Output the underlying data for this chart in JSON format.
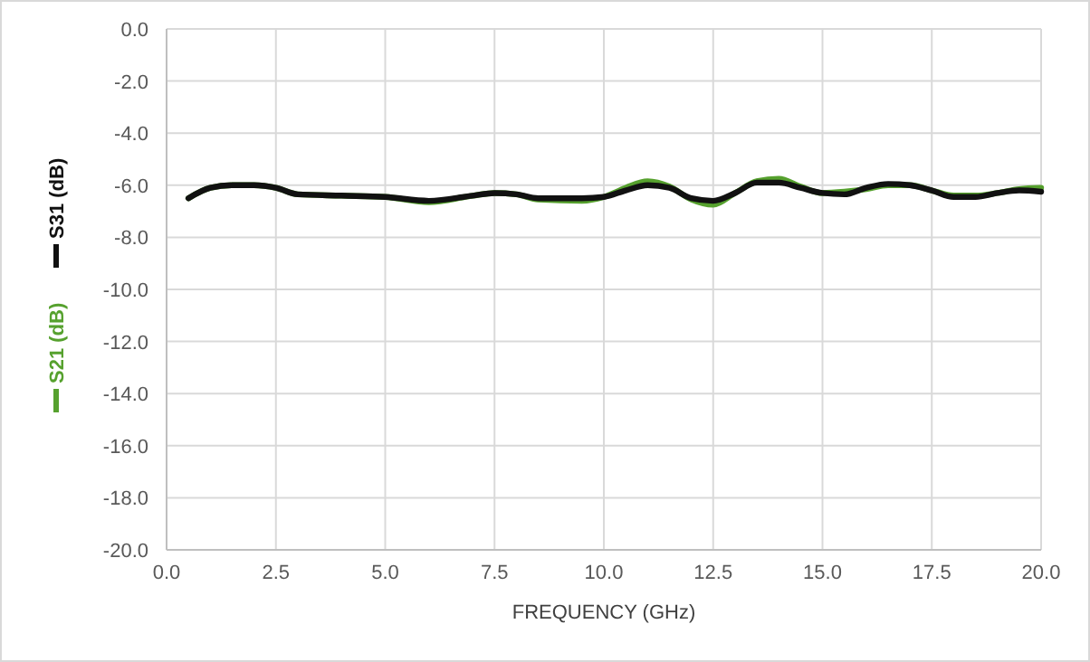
{
  "chart_data": {
    "type": "line",
    "xlabel": "FREQUENCY (GHz)",
    "legend": "left",
    "grid": true,
    "line_style": "solid",
    "xlim": [
      0,
      20
    ],
    "xticks": [
      {
        "value": 0,
        "label": "0.0"
      },
      {
        "value": 2.5,
        "label": "2.5"
      },
      {
        "value": 5,
        "label": "5.0"
      },
      {
        "value": 7.5,
        "label": "7.5"
      },
      {
        "value": 10,
        "label": "10.0"
      },
      {
        "value": 12.5,
        "label": "12.5"
      },
      {
        "value": 15,
        "label": "15.0"
      },
      {
        "value": 17.5,
        "label": "17.5"
      },
      {
        "value": 20,
        "label": "20.0"
      }
    ],
    "ylim": [
      -20,
      0
    ],
    "yticks": [
      {
        "value": -20,
        "label": "-20.0"
      },
      {
        "value": -18,
        "label": "-18.0"
      },
      {
        "value": -16,
        "label": "-16.0"
      },
      {
        "value": -14,
        "label": "-14.0"
      },
      {
        "value": -12,
        "label": "-12.0"
      },
      {
        "value": -10,
        "label": "-10.0"
      },
      {
        "value": -8,
        "label": "-8.0"
      },
      {
        "value": -6,
        "label": "-6.0"
      },
      {
        "value": -4,
        "label": "-4.0"
      },
      {
        "value": -2,
        "label": "-2.0"
      },
      {
        "value": 0,
        "label": "0.0"
      }
    ],
    "x": [
      0.5,
      1,
      1.5,
      2,
      2.5,
      3,
      4,
      5,
      6,
      7,
      7.5,
      8,
      8.5,
      9.5,
      10,
      10.5,
      11,
      11.5,
      12,
      12.5,
      13,
      13.5,
      14,
      14.5,
      15,
      15.5,
      16,
      16.5,
      17,
      17.5,
      18,
      18.5,
      19,
      19.5,
      20
    ],
    "series": [
      {
        "name": "S21 (dB)",
        "color": "#56a12e",
        "values": [
          -6.5,
          -6.1,
          -6.0,
          -6.0,
          -6.1,
          -6.35,
          -6.4,
          -6.45,
          -6.65,
          -6.4,
          -6.3,
          -6.35,
          -6.55,
          -6.6,
          -6.45,
          -6.1,
          -5.85,
          -6.05,
          -6.55,
          -6.75,
          -6.3,
          -5.85,
          -5.75,
          -6.05,
          -6.3,
          -6.25,
          -6.15,
          -6.0,
          -6.0,
          -6.2,
          -6.4,
          -6.4,
          -6.3,
          -6.15,
          -6.1
        ]
      },
      {
        "name": "S31 (dB)",
        "color": "#111111",
        "values": [
          -6.5,
          -6.1,
          -6.0,
          -6.0,
          -6.1,
          -6.35,
          -6.4,
          -6.45,
          -6.6,
          -6.4,
          -6.3,
          -6.35,
          -6.5,
          -6.5,
          -6.45,
          -6.2,
          -6.0,
          -6.1,
          -6.5,
          -6.6,
          -6.3,
          -5.9,
          -5.9,
          -6.1,
          -6.3,
          -6.35,
          -6.1,
          -5.95,
          -6.0,
          -6.2,
          -6.45,
          -6.45,
          -6.3,
          -6.2,
          -6.25
        ]
      }
    ]
  }
}
